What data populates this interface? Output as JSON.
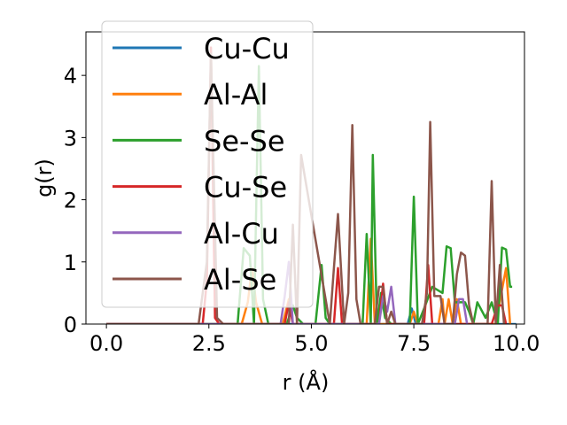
{
  "chart_data": {
    "type": "line",
    "title": "",
    "xlabel": "r (Å)",
    "ylabel": "g(r)",
    "xlim": [
      -0.5,
      10.2
    ],
    "ylim": [
      0,
      4.7
    ],
    "x_ticks": [
      0.0,
      2.5,
      5.0,
      7.5,
      10.0
    ],
    "x_tick_labels": [
      "0.0",
      "2.5",
      "5.0",
      "7.5",
      "10.0"
    ],
    "y_ticks": [
      0,
      1,
      2,
      3,
      4
    ],
    "y_tick_labels": [
      "0",
      "1",
      "2",
      "3",
      "4"
    ],
    "grid": false,
    "legend_position": "upper-left",
    "series": [
      {
        "name": "Cu-Cu",
        "color": "#1f77b4",
        "x": [
          0,
          7.35,
          7.45,
          7.55,
          7.65,
          10.0
        ],
        "y": [
          0,
          0,
          0.25,
          0,
          0,
          0
        ]
      },
      {
        "name": "Al-Al",
        "color": "#ff7f0e",
        "x": [
          0,
          3.3,
          3.45,
          3.55,
          3.65,
          3.8,
          4.3,
          4.45,
          4.55,
          6.35,
          6.45,
          6.55,
          6.65,
          7.4,
          7.5,
          7.6,
          8.1,
          8.2,
          8.25,
          8.35,
          8.45,
          8.55,
          8.65,
          8.9,
          9.5,
          9.65,
          9.75,
          9.85
        ],
        "y": [
          0,
          0,
          0.35,
          0.9,
          0.35,
          0,
          0,
          0.4,
          0,
          0,
          1.37,
          0,
          0,
          0,
          0.2,
          0,
          0,
          0.4,
          0,
          0.4,
          0,
          0.4,
          0,
          0,
          0,
          0.55,
          0.9,
          0
        ]
      },
      {
        "name": "Se-Se",
        "color": "#2ca02c",
        "x": [
          0,
          3.2,
          3.35,
          3.5,
          3.6,
          3.72,
          3.82,
          3.95,
          4.4,
          4.55,
          4.65,
          4.8,
          5.05,
          5.1,
          5.25,
          5.35,
          5.45,
          6.25,
          6.35,
          6.45,
          6.5,
          6.6,
          6.7,
          6.8,
          6.95,
          7.4,
          7.5,
          7.6,
          7.75,
          7.95,
          8.2,
          8.3,
          8.4,
          8.5,
          8.6,
          8.75,
          8.85,
          8.95,
          9.05,
          9.25,
          9.4,
          9.55,
          9.65,
          9.75,
          9.85,
          9.9
        ],
        "y": [
          0,
          0,
          1.22,
          1.1,
          0,
          4.15,
          0.4,
          0,
          0,
          0.3,
          0.1,
          0,
          0,
          0,
          0.95,
          0.1,
          0,
          0,
          1.45,
          0,
          2.72,
          0,
          0.5,
          0.1,
          0,
          0,
          2.05,
          0,
          0.25,
          0.6,
          0.5,
          1.25,
          1.22,
          0.35,
          0.35,
          0.35,
          0.2,
          0,
          0.35,
          0.1,
          0.35,
          0,
          1.23,
          1.2,
          0.6,
          0.6
        ]
      },
      {
        "name": "Cu-Se",
        "color": "#d62728",
        "x": [
          0,
          2.35,
          2.45,
          2.55,
          2.65,
          2.75,
          4.35,
          4.45,
          4.55,
          5.55,
          5.65,
          5.75,
          5.85,
          6.65,
          6.75,
          6.85,
          7.75,
          7.85,
          7.95,
          9.4,
          9.55,
          9.65,
          9.75
        ],
        "y": [
          0,
          0,
          0.7,
          4.45,
          0.1,
          0,
          0,
          0.35,
          0,
          0,
          0.9,
          0,
          0,
          0,
          0.65,
          0,
          0,
          0.95,
          0,
          0,
          0.3,
          0.3,
          0
        ]
      },
      {
        "name": "Al-Cu",
        "color": "#9467bd",
        "x": [
          0,
          4.25,
          4.35,
          4.45,
          4.55,
          6.65,
          6.75,
          6.85,
          6.95,
          7.05,
          8.5,
          8.6,
          8.7,
          8.8
        ],
        "y": [
          0,
          0,
          0.45,
          1.0,
          0,
          0,
          0.45,
          0.2,
          0.6,
          0,
          0,
          0.4,
          0.4,
          0
        ]
      },
      {
        "name": "Al-Se",
        "color": "#8c564b",
        "x": [
          0,
          2.25,
          2.35,
          2.45,
          2.55,
          2.7,
          2.85,
          4.45,
          4.55,
          4.65,
          4.75,
          5.45,
          5.55,
          5.65,
          5.8,
          5.9,
          6.0,
          6.1,
          6.2,
          6.35,
          6.55,
          6.65,
          6.75,
          6.85,
          6.95,
          7.05,
          7.7,
          7.82,
          7.9,
          8.0,
          8.15,
          8.25,
          8.45,
          8.55,
          8.65,
          8.75,
          8.85,
          8.95,
          9.3,
          9.4,
          9.5,
          9.6,
          9.7
        ],
        "y": [
          0,
          0,
          0.5,
          1.0,
          4.35,
          0.1,
          0,
          0,
          1.6,
          0,
          2.72,
          0,
          0.9,
          1.77,
          0,
          0.5,
          3.2,
          0.4,
          0,
          0,
          0,
          0.6,
          0.6,
          0,
          0.2,
          0,
          0,
          0.5,
          3.25,
          0.45,
          0.45,
          0,
          0,
          0.8,
          1.15,
          1.1,
          0.3,
          0,
          0,
          2.3,
          0,
          0.95,
          0
        ]
      }
    ]
  }
}
